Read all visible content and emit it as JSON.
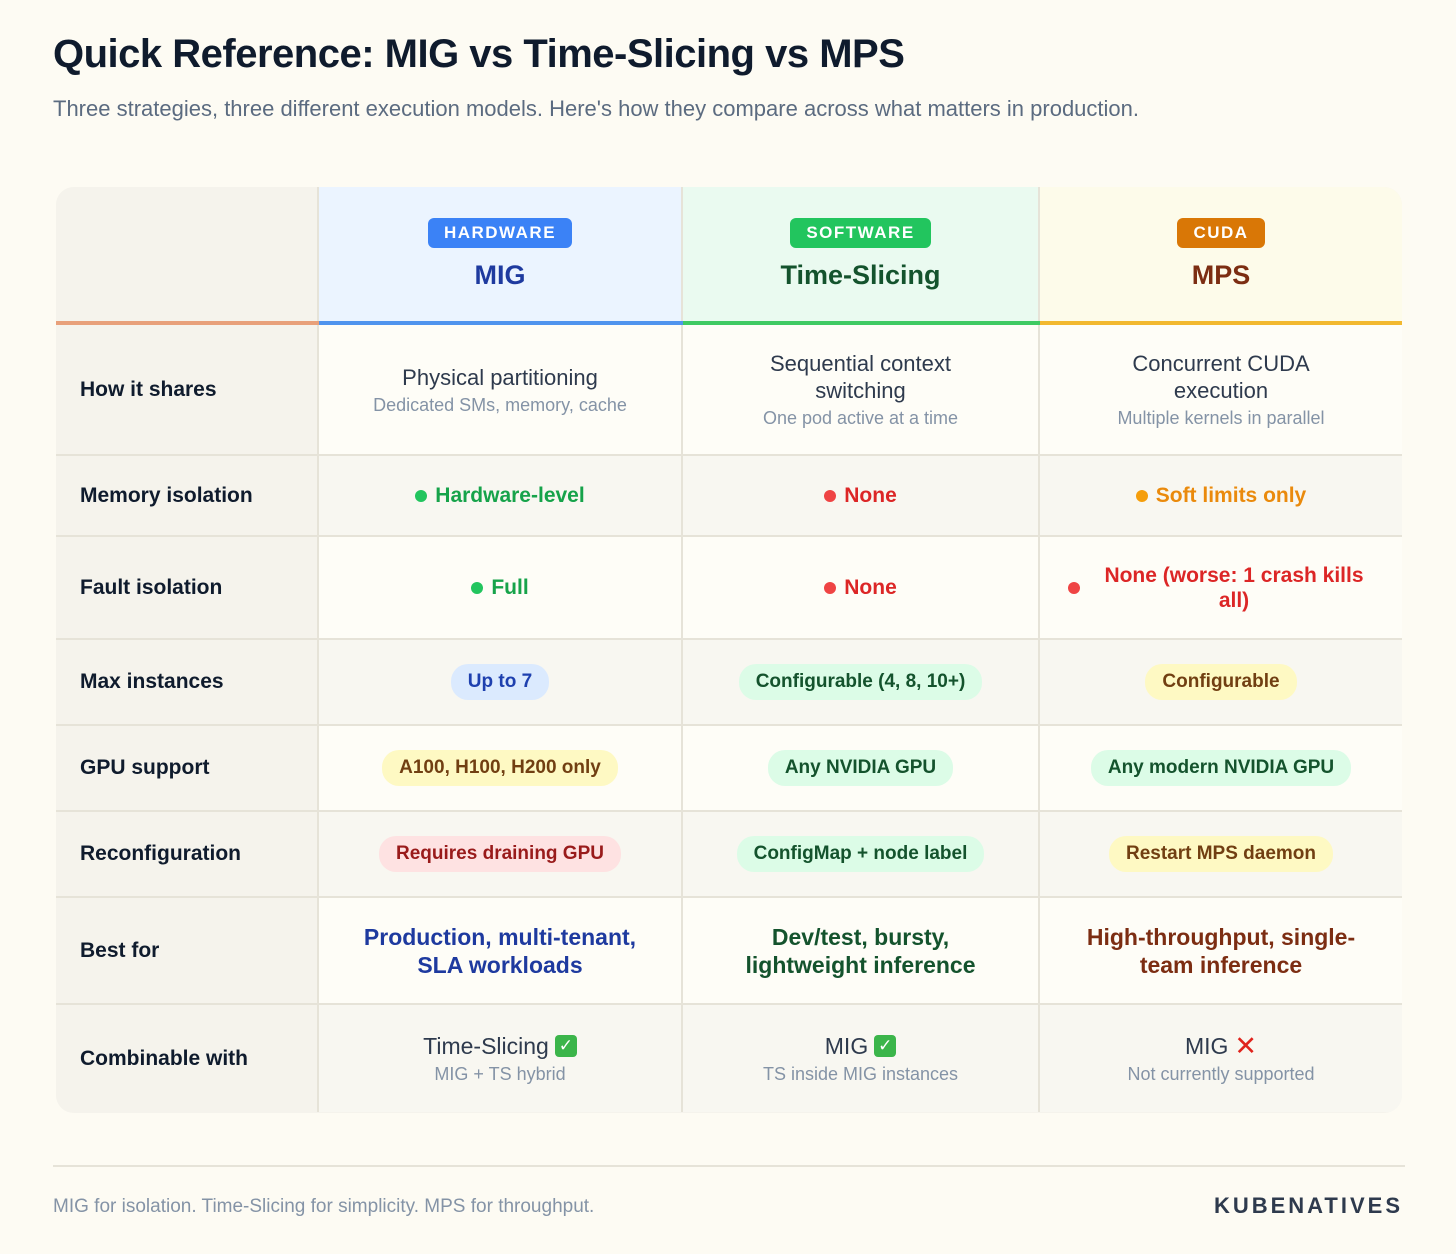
{
  "title": "Quick Reference: MIG vs Time-Slicing vs MPS",
  "subtitle": "Three strategies, three different execution models. Here's how they compare across what matters in production.",
  "columns": [
    {
      "badge": "HARDWARE",
      "name": "MIG",
      "badge_color": "#3b82f6",
      "name_color": "#1e3a9f",
      "bar_color": "#4f94ee"
    },
    {
      "badge": "SOFTWARE",
      "name": "Time-Slicing",
      "badge_color": "#22c55e",
      "name_color": "#14532d",
      "bar_color": "#3fca63"
    },
    {
      "badge": "CUDA",
      "name": "MPS",
      "badge_color": "#d97706",
      "name_color": "#7c2d12",
      "bar_color": "#f2b82f"
    }
  ],
  "rows": {
    "how_it_shares": {
      "label": "How it shares",
      "cells": [
        {
          "main": "Physical partitioning",
          "sub": "Dedicated SMs, memory, cache"
        },
        {
          "main": "Sequential context switching",
          "sub": "One pod active at a time"
        },
        {
          "main": "Concurrent CUDA execution",
          "sub": "Multiple kernels in parallel"
        }
      ]
    },
    "memory_isolation": {
      "label": "Memory isolation",
      "cells": [
        {
          "text": "Hardware-level",
          "color": "#16a34a",
          "dot_color": "#22c55e"
        },
        {
          "text": "None",
          "color": "#dc2626",
          "dot_color": "#ef4444"
        },
        {
          "text": "Soft limits only",
          "color": "#ea8a0c",
          "dot_color": "#f59e0b"
        }
      ]
    },
    "fault_isolation": {
      "label": "Fault isolation",
      "cells": [
        {
          "text": "Full",
          "color": "#16a34a",
          "dot_color": "#22c55e"
        },
        {
          "text": "None",
          "color": "#dc2626",
          "dot_color": "#ef4444"
        },
        {
          "text": "None (worse: 1 crash kills all)",
          "color": "#dc2626",
          "dot_color": "#ef4444"
        }
      ]
    },
    "max_instances": {
      "label": "Max instances",
      "cells": [
        {
          "text": "Up to 7",
          "bg": "#dbeafe",
          "color": "#1e40af"
        },
        {
          "text": "Configurable (4, 8, 10+)",
          "bg": "#dcfce7",
          "color": "#14532d"
        },
        {
          "text": "Configurable",
          "bg": "#fef9c3",
          "color": "#713f12"
        }
      ]
    },
    "gpu_support": {
      "label": "GPU support",
      "cells": [
        {
          "text": "A100, H100, H200 only",
          "bg": "#fef9c3",
          "color": "#713f12"
        },
        {
          "text": "Any NVIDIA GPU",
          "bg": "#dcfce7",
          "color": "#14532d"
        },
        {
          "text": "Any modern NVIDIA GPU",
          "bg": "#dcfce7",
          "color": "#14532d"
        }
      ]
    },
    "reconfiguration": {
      "label": "Reconfiguration",
      "cells": [
        {
          "text": "Requires draining GPU",
          "bg": "#fee2e2",
          "color": "#991b1b"
        },
        {
          "text": "ConfigMap + node label",
          "bg": "#dcfce7",
          "color": "#14532d"
        },
        {
          "text": "Restart MPS daemon",
          "bg": "#fef9c3",
          "color": "#713f12"
        }
      ]
    },
    "best_for": {
      "label": "Best for",
      "cells": [
        {
          "text": "Production, multi-tenant, SLA workloads",
          "color": "#1e3a9f"
        },
        {
          "text": "Dev/test, bursty, lightweight inference",
          "color": "#14532d"
        },
        {
          "text": "High-throughput, single-team inference",
          "color": "#7c2d12"
        }
      ]
    },
    "combinable_with": {
      "label": "Combinable with",
      "cells": [
        {
          "main": "Time-Slicing",
          "mark": "✓",
          "mark_icon": "check-mark-icon",
          "sub": "MIG + TS hybrid"
        },
        {
          "main": "MIG",
          "mark": "✓",
          "mark_icon": "check-mark-icon",
          "sub": "TS inside MIG instances"
        },
        {
          "main": "MIG",
          "mark": "✕",
          "mark_icon": "cross-mark-icon",
          "sub": "Not currently supported"
        }
      ]
    }
  },
  "header_bar_color_label": "#e8a07a",
  "footer": {
    "text": "MIG for isolation. Time-Slicing for simplicity. MPS for throughput.",
    "brand": "KUBENATIVES"
  }
}
